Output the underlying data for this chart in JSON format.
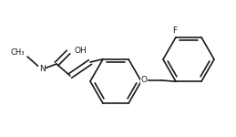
{
  "bg_color": "#ffffff",
  "line_color": "#1a1a1a",
  "line_width": 1.2,
  "font_size": 6.5,
  "fig_w": 2.59,
  "fig_h": 1.5,
  "xlim": [
    0,
    259
  ],
  "ylim": [
    0,
    150
  ]
}
